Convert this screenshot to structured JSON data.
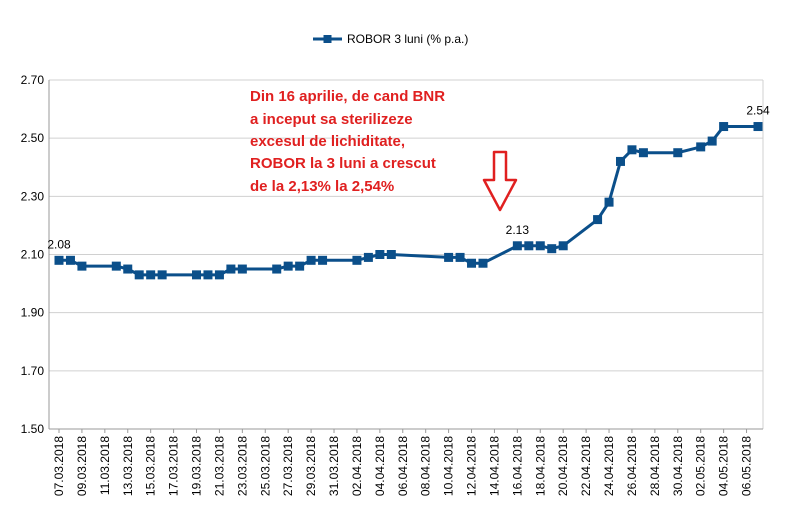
{
  "chart_data": {
    "type": "line",
    "legend": {
      "label": "ROBOR 3 luni (% p.a.)",
      "position": "top-center"
    },
    "colors": {
      "series": "#0b4f8a",
      "annotation": "#e02020",
      "arrow": "#e02020",
      "grid": "#d0d0d0",
      "axis": "#9a9a9a"
    },
    "grid": true,
    "ylim": [
      1.5,
      2.7
    ],
    "y_ticks": [
      "1.50",
      "1.70",
      "1.90",
      "2.10",
      "2.30",
      "2.50",
      "2.70"
    ],
    "x_tick_labels": [
      "07.03.2018",
      "09.03.2018",
      "11.03.2018",
      "13.03.2018",
      "15.03.2018",
      "17.03.2018",
      "19.03.2018",
      "21.03.2018",
      "23.03.2018",
      "25.03.2018",
      "27.03.2018",
      "29.03.2018",
      "31.03.2018",
      "02.04.2018",
      "04.04.2018",
      "06.04.2018",
      "08.04.2018",
      "10.04.2018",
      "12.04.2018",
      "14.04.2018",
      "16.04.2018",
      "18.04.2018",
      "20.04.2018",
      "22.04.2018",
      "24.04.2018",
      "26.04.2018",
      "28.04.2018",
      "30.04.2018",
      "02.05.2018",
      "04.05.2018",
      "06.05.2018"
    ],
    "series": [
      {
        "name": "ROBOR 3 luni (% p.a.)",
        "points": [
          {
            "x": "2018-03-07",
            "y": 2.08
          },
          {
            "x": "2018-03-08",
            "y": 2.08
          },
          {
            "x": "2018-03-09",
            "y": 2.06
          },
          {
            "x": "2018-03-12",
            "y": 2.06
          },
          {
            "x": "2018-03-13",
            "y": 2.05
          },
          {
            "x": "2018-03-14",
            "y": 2.03
          },
          {
            "x": "2018-03-15",
            "y": 2.03
          },
          {
            "x": "2018-03-16",
            "y": 2.03
          },
          {
            "x": "2018-03-19",
            "y": 2.03
          },
          {
            "x": "2018-03-20",
            "y": 2.03
          },
          {
            "x": "2018-03-21",
            "y": 2.03
          },
          {
            "x": "2018-03-22",
            "y": 2.05
          },
          {
            "x": "2018-03-23",
            "y": 2.05
          },
          {
            "x": "2018-03-26",
            "y": 2.05
          },
          {
            "x": "2018-03-27",
            "y": 2.06
          },
          {
            "x": "2018-03-28",
            "y": 2.06
          },
          {
            "x": "2018-03-29",
            "y": 2.08
          },
          {
            "x": "2018-03-30",
            "y": 2.08
          },
          {
            "x": "2018-04-02",
            "y": 2.08
          },
          {
            "x": "2018-04-03",
            "y": 2.09
          },
          {
            "x": "2018-04-04",
            "y": 2.1
          },
          {
            "x": "2018-04-05",
            "y": 2.1
          },
          {
            "x": "2018-04-10",
            "y": 2.09
          },
          {
            "x": "2018-04-11",
            "y": 2.09
          },
          {
            "x": "2018-04-12",
            "y": 2.07
          },
          {
            "x": "2018-04-13",
            "y": 2.07
          },
          {
            "x": "2018-04-16",
            "y": 2.13
          },
          {
            "x": "2018-04-17",
            "y": 2.13
          },
          {
            "x": "2018-04-18",
            "y": 2.13
          },
          {
            "x": "2018-04-19",
            "y": 2.12
          },
          {
            "x": "2018-04-20",
            "y": 2.13
          },
          {
            "x": "2018-04-23",
            "y": 2.22
          },
          {
            "x": "2018-04-24",
            "y": 2.28
          },
          {
            "x": "2018-04-25",
            "y": 2.42
          },
          {
            "x": "2018-04-26",
            "y": 2.46
          },
          {
            "x": "2018-04-27",
            "y": 2.45
          },
          {
            "x": "2018-04-30",
            "y": 2.45
          },
          {
            "x": "2018-05-02",
            "y": 2.47
          },
          {
            "x": "2018-05-03",
            "y": 2.49
          },
          {
            "x": "2018-05-04",
            "y": 2.54
          },
          {
            "x": "2018-05-07",
            "y": 2.54
          }
        ]
      }
    ],
    "data_labels": [
      {
        "x": "2018-03-07",
        "text": "2.08"
      },
      {
        "x": "2018-04-16",
        "text": "2.13"
      },
      {
        "x": "2018-05-07",
        "text": "2.54"
      }
    ],
    "annotation": {
      "lines": [
        "Din 16 aprilie, de cand BNR",
        "a inceput sa sterilizeze",
        "excesul de lichiditate,",
        "ROBOR la 3 luni a crescut",
        "de la 2,13% la 2,54%"
      ]
    }
  }
}
